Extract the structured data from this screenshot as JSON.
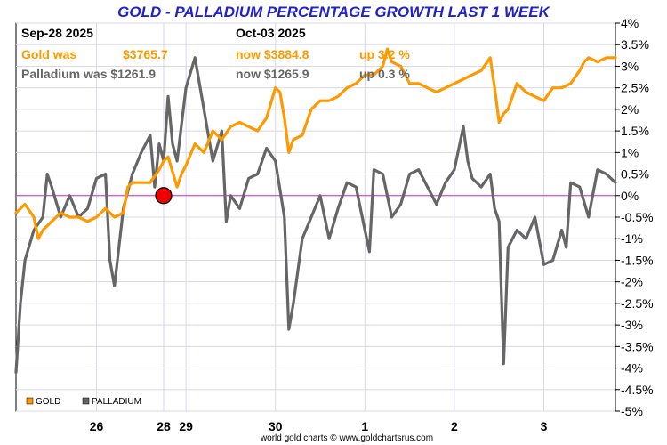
{
  "chart_data": {
    "type": "line",
    "title": "GOLD - PALLADIUM PERCENTAGE GROWTH LAST 1 WEEK",
    "footer": "world gold charts © www.goldchartsrus.com",
    "start_date": "Sep-28  2025",
    "end_date": "Oct-03  2025",
    "gold_info": {
      "was": "Gold was",
      "was_price": "$3765.7",
      "now": "now $3884.8",
      "change": "up 3.2 %"
    },
    "palladium_info": {
      "was": "Palladium was $1261.9",
      "now": "now $1265.9",
      "change": "up 0.3 %"
    },
    "ylim": [
      -5,
      4
    ],
    "y_ticks": [
      4,
      3.5,
      3,
      2.5,
      2,
      1.5,
      1,
      0.5,
      0,
      -0.5,
      -1,
      -1.5,
      -2,
      -2.5,
      -3,
      -3.5,
      -4,
      -4.5,
      -5
    ],
    "y_tick_labels": [
      "4%",
      "3.5%",
      "3%",
      "2.5%",
      "2%",
      "1.5%",
      "1%",
      "0.5%",
      "0%",
      "-0.5%",
      "-1%",
      "-1.5%",
      "-2%",
      "-2.5%",
      "-3%",
      "-3.5%",
      "-4%",
      "-4.5%",
      "-5%"
    ],
    "x_range": [
      0,
      6.7
    ],
    "x_ticks": [
      {
        "x": 0.9,
        "label": "26"
      },
      {
        "x": 1.65,
        "label": "28"
      },
      {
        "x": 1.9,
        "label": "29"
      },
      {
        "x": 2.9,
        "label": "30"
      },
      {
        "x": 3.9,
        "label": "1"
      },
      {
        "x": 4.9,
        "label": "2"
      },
      {
        "x": 5.9,
        "label": "3"
      }
    ],
    "reference_point": {
      "x": 1.65,
      "y": 0
    },
    "grid": true,
    "legend_placement": "bottom-left",
    "colors": {
      "gold": "#ff9900",
      "palladium": "#666666",
      "zero_line": "#cc33cc",
      "marker": "#ee0000",
      "title": "#2020cc"
    },
    "series": [
      {
        "name": "GOLD",
        "color": "#ff9900",
        "x": [
          0,
          0.1,
          0.2,
          0.25,
          0.3,
          0.4,
          0.5,
          0.6,
          0.7,
          0.8,
          0.9,
          1.0,
          1.1,
          1.2,
          1.25,
          1.3,
          1.4,
          1.5,
          1.6,
          1.65,
          1.7,
          1.8,
          1.85,
          1.9,
          2.0,
          2.1,
          2.2,
          2.3,
          2.4,
          2.5,
          2.6,
          2.7,
          2.8,
          2.9,
          2.95,
          3.0,
          3.05,
          3.1,
          3.2,
          3.3,
          3.4,
          3.5,
          3.6,
          3.7,
          3.8,
          3.9,
          4.0,
          4.1,
          4.15,
          4.2,
          4.3,
          4.4,
          4.5,
          4.6,
          4.7,
          4.8,
          4.9,
          5.0,
          5.1,
          5.2,
          5.3,
          5.35,
          5.4,
          5.45,
          5.5,
          5.6,
          5.7,
          5.8,
          5.9,
          6.0,
          6.1,
          6.2,
          6.3,
          6.35,
          6.4,
          6.5,
          6.6,
          6.7
        ],
        "y": [
          -0.4,
          -0.2,
          -0.5,
          -1.0,
          -0.8,
          -0.6,
          -0.4,
          -0.5,
          -0.5,
          -0.6,
          -0.5,
          -0.3,
          -0.5,
          -0.4,
          0.2,
          0.3,
          0.3,
          0.3,
          0.6,
          0.8,
          0.9,
          0.2,
          0.5,
          0.7,
          1.2,
          1.0,
          1.5,
          1.3,
          1.6,
          1.7,
          1.6,
          1.5,
          1.8,
          2.5,
          2.4,
          1.8,
          1.0,
          1.3,
          1.4,
          2.0,
          2.2,
          2.2,
          2.3,
          2.5,
          2.6,
          2.8,
          2.8,
          3.0,
          3.4,
          3.1,
          3.0,
          2.6,
          2.6,
          2.5,
          2.4,
          2.5,
          2.6,
          2.7,
          2.8,
          2.9,
          3.2,
          2.5,
          1.7,
          1.9,
          2.0,
          2.6,
          2.4,
          2.3,
          2.2,
          2.5,
          2.5,
          2.6,
          2.9,
          3.1,
          3.2,
          3.1,
          3.2,
          3.2
        ]
      },
      {
        "name": "PALLADIUM",
        "color": "#666666",
        "x": [
          0,
          0.05,
          0.1,
          0.2,
          0.3,
          0.35,
          0.4,
          0.5,
          0.6,
          0.7,
          0.8,
          0.9,
          1.0,
          1.05,
          1.1,
          1.2,
          1.3,
          1.4,
          1.5,
          1.55,
          1.6,
          1.65,
          1.7,
          1.75,
          1.8,
          1.9,
          2.0,
          2.1,
          2.2,
          2.3,
          2.35,
          2.4,
          2.5,
          2.6,
          2.7,
          2.8,
          2.9,
          3.0,
          3.05,
          3.1,
          3.2,
          3.3,
          3.4,
          3.5,
          3.6,
          3.7,
          3.8,
          3.9,
          3.95,
          4.0,
          4.1,
          4.2,
          4.3,
          4.4,
          4.5,
          4.6,
          4.7,
          4.8,
          4.9,
          5.0,
          5.05,
          5.1,
          5.2,
          5.3,
          5.35,
          5.4,
          5.45,
          5.5,
          5.6,
          5.7,
          5.8,
          5.9,
          6.0,
          6.1,
          6.15,
          6.2,
          6.3,
          6.4,
          6.5,
          6.6,
          6.7
        ],
        "y": [
          -4.1,
          -2.5,
          -1.5,
          -0.8,
          -0.5,
          0.5,
          0.2,
          -0.5,
          0.0,
          -0.5,
          -0.3,
          0.4,
          0.5,
          -1.5,
          -2.1,
          -0.3,
          0.5,
          1.0,
          1.4,
          0.2,
          1.2,
          0.8,
          2.3,
          1.2,
          0.8,
          2.5,
          3.2,
          2.0,
          0.8,
          1.5,
          -0.6,
          0.0,
          -0.3,
          0.4,
          0.5,
          1.1,
          0.8,
          -0.5,
          -3.1,
          -2.5,
          -1.0,
          -0.5,
          0.0,
          -1.0,
          -0.3,
          0.3,
          0.2,
          -0.8,
          -1.3,
          0.6,
          0.5,
          -0.5,
          -0.2,
          0.5,
          0.6,
          0.2,
          -0.2,
          0.3,
          0.6,
          1.6,
          0.8,
          0.4,
          0.2,
          0.5,
          -0.3,
          -0.6,
          -3.9,
          -1.2,
          -0.8,
          -1.0,
          -0.5,
          -1.6,
          -1.5,
          -0.8,
          -1.2,
          0.3,
          0.2,
          -0.5,
          0.6,
          0.5,
          0.3
        ]
      }
    ]
  }
}
